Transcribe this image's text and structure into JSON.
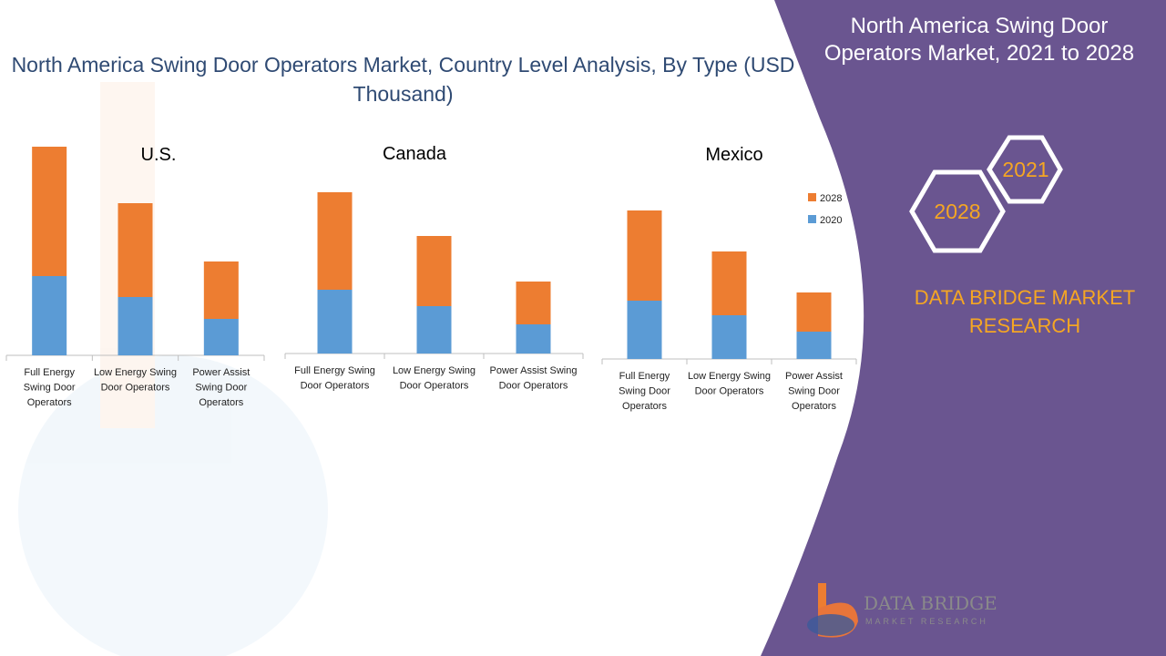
{
  "header": {
    "title": "North America Swing Door Operators Market, Country Level Analysis, By Type (USD Thousand)"
  },
  "side_panel": {
    "title": "North America Swing Door Operators Market, 2021 to 2028",
    "hex_years": [
      "2021",
      "2028"
    ],
    "brand_text": "DATA BRIDGE MARKET RESEARCH",
    "logo_text": "DATA BRIDGE",
    "logo_sub": "MARKET RESEARCH"
  },
  "colors": {
    "series_2020": "#5b9bd5",
    "series_2028": "#ed7d31",
    "panel": "#6a5590",
    "accent": "#f5a623"
  },
  "legend": {
    "placement": "top-right of Mexico chart"
  },
  "chart_data": [
    {
      "type": "bar",
      "stacked": true,
      "title": "U.S.",
      "categories": [
        "Full Energy Swing Door Operators",
        "Low Energy Swing Door Operators",
        "Power Assist Swing Door Operators"
      ],
      "series": [
        {
          "name": "2020",
          "values": [
            87,
            64,
            40
          ]
        },
        {
          "name": "2028",
          "values": [
            142,
            103,
            63
          ]
        }
      ]
    },
    {
      "type": "bar",
      "stacked": true,
      "title": "Canada",
      "categories": [
        "Full Energy Swing Door Operators",
        "Low Energy Swing Door Operators",
        "Power Assist Swing Door Operators"
      ],
      "series": [
        {
          "name": "2020",
          "values": [
            70,
            52,
            32
          ]
        },
        {
          "name": "2028",
          "values": [
            107,
            77,
            47
          ]
        }
      ]
    },
    {
      "type": "bar",
      "stacked": true,
      "title": "Mexico",
      "categories": [
        "Full Energy Swing Door Operators",
        "Low Energy Swing Door Operators",
        "Power Assist Swing Door Operators"
      ],
      "series": [
        {
          "name": "2020",
          "values": [
            64,
            48,
            30
          ]
        },
        {
          "name": "2028",
          "values": [
            99,
            70,
            43
          ]
        }
      ]
    }
  ]
}
